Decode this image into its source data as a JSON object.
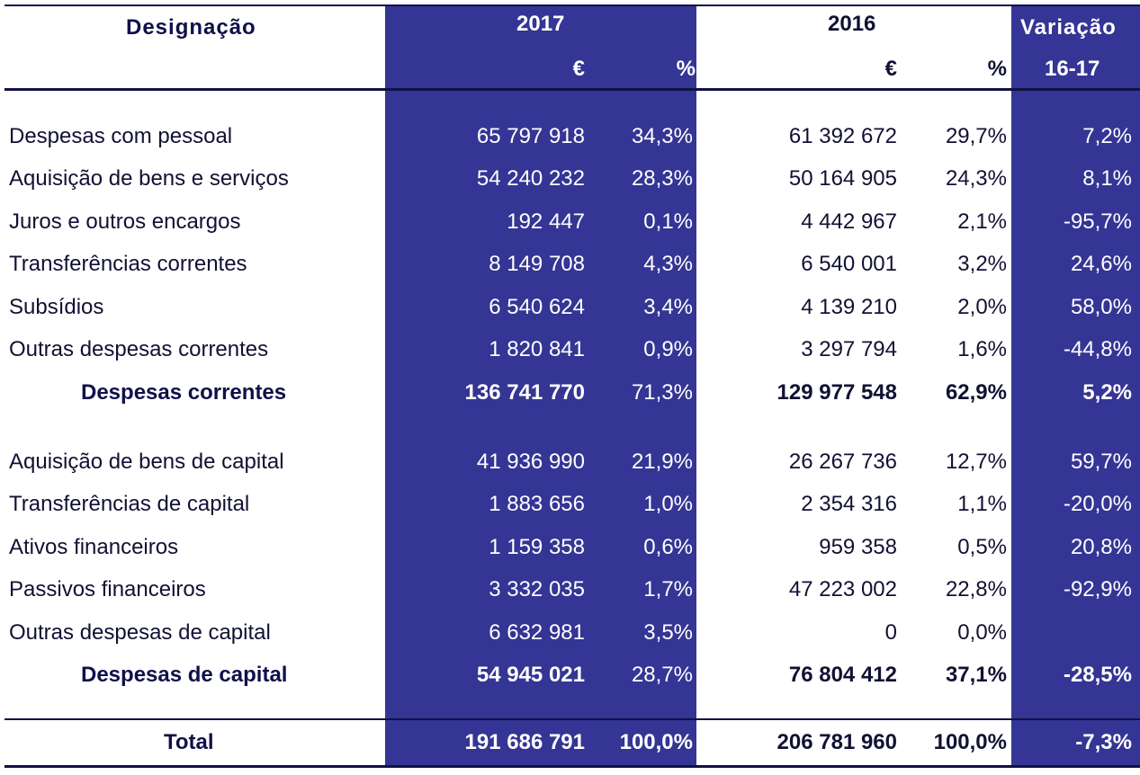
{
  "header": {
    "designacao": "Designação",
    "year_2017": "2017",
    "year_2016": "2016",
    "variacao": "Variação",
    "euro_2017": "€",
    "pct_2017": "%",
    "euro_2016": "€",
    "pct_2016": "%",
    "variacao_range": "16-17"
  },
  "colors": {
    "band": "#343594",
    "text_dark": "#111133"
  },
  "rows": [
    {
      "label": "Despesas com pessoal",
      "e2017": "65 797 918",
      "p2017": "34,3%",
      "e2016": "61 392 672",
      "p2016": "29,7%",
      "var": "7,2%"
    },
    {
      "label": "Aquisição de bens e serviços",
      "e2017": "54 240 232",
      "p2017": "28,3%",
      "e2016": "50 164 905",
      "p2016": "24,3%",
      "var": "8,1%"
    },
    {
      "label": "Juros e outros encargos",
      "e2017": "192 447",
      "p2017": "0,1%",
      "e2016": "4 442 967",
      "p2016": "2,1%",
      "var": "-95,7%"
    },
    {
      "label": "Transferências correntes",
      "e2017": "8 149 708",
      "p2017": "4,3%",
      "e2016": "6 540 001",
      "p2016": "3,2%",
      "var": "24,6%"
    },
    {
      "label": "Subsídios",
      "e2017": "6 540 624",
      "p2017": "3,4%",
      "e2016": "4 139 210",
      "p2016": "2,0%",
      "var": "58,0%"
    },
    {
      "label": "Outras despesas correntes",
      "e2017": "1 820 841",
      "p2017": "0,9%",
      "e2016": "3 297 794",
      "p2016": "1,6%",
      "var": "-44,8%"
    },
    {
      "label": "Despesas correntes",
      "e2017": "136 741 770",
      "p2017": "71,3%",
      "e2016": "129 977 548",
      "p2016": "62,9%",
      "var": "5,2%"
    },
    {
      "label": "Aquisição de bens de capital",
      "e2017": "41 936 990",
      "p2017": "21,9%",
      "e2016": "26 267 736",
      "p2016": "12,7%",
      "var": "59,7%"
    },
    {
      "label": "Transferências de capital",
      "e2017": "1 883 656",
      "p2017": "1,0%",
      "e2016": "2 354 316",
      "p2016": "1,1%",
      "var": "-20,0%"
    },
    {
      "label": "Ativos financeiros",
      "e2017": "1 159 358",
      "p2017": "0,6%",
      "e2016": "959 358",
      "p2016": "0,5%",
      "var": "20,8%"
    },
    {
      "label": "Passivos financeiros",
      "e2017": "3 332 035",
      "p2017": "1,7%",
      "e2016": "47 223 002",
      "p2016": "22,8%",
      "var": "-92,9%"
    },
    {
      "label": "Outras despesas de capital",
      "e2017": "6 632 981",
      "p2017": "3,5%",
      "e2016": "0",
      "p2016": "0,0%",
      "var": ""
    },
    {
      "label": "Despesas de capital",
      "e2017": "54 945 021",
      "p2017": "28,7%",
      "e2016": "76 804 412",
      "p2016": "37,1%",
      "var": "-28,5%"
    },
    {
      "label": "Total",
      "e2017": "191 686 791",
      "p2017": "100,0%",
      "e2016": "206 781 960",
      "p2016": "100,0%",
      "var": "-7,3%"
    }
  ]
}
